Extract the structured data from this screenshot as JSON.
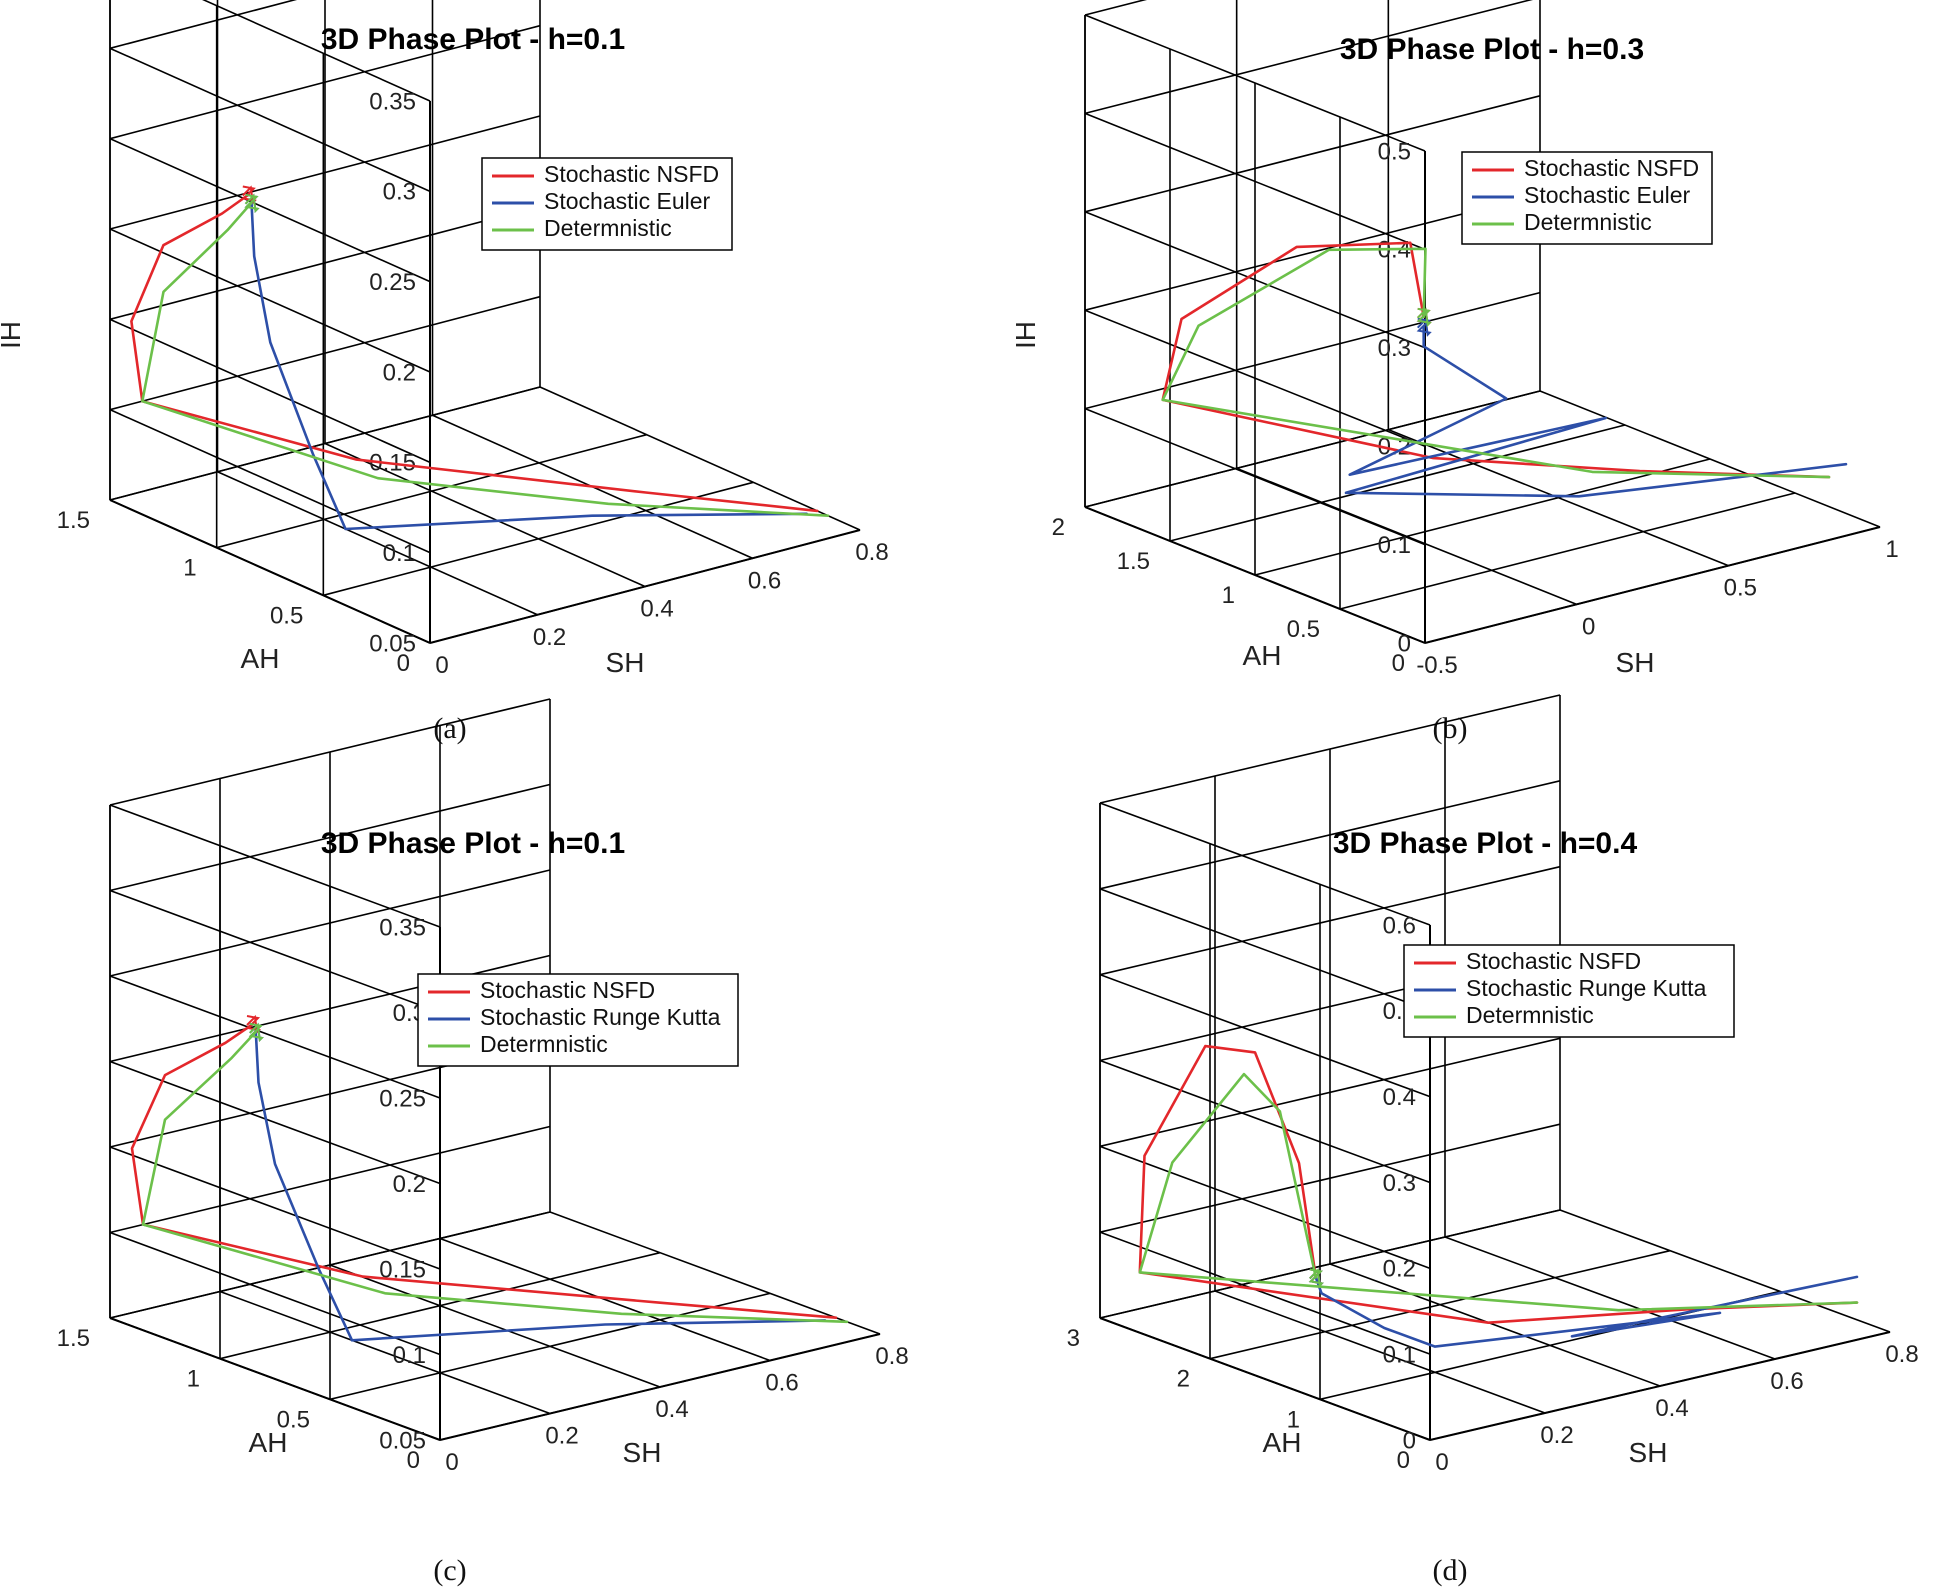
{
  "colors": {
    "nsfd": "#e3272b",
    "stochastic": "#2d4fa8",
    "deterministic": "#6cc04a",
    "axis": "#000000"
  },
  "chart_data": [
    {
      "type": "line3d",
      "panel_label": "(a)",
      "title": "3D Phase Plot - h=0.1",
      "xlabel": "SH",
      "ylabel": "AH",
      "zlabel": "IH",
      "xlim": [
        0,
        0.8
      ],
      "ylim": [
        0,
        1.5
      ],
      "zlim": [
        0.05,
        0.35
      ],
      "x_ticks": [
        "0",
        "0.2",
        "0.4",
        "0.6",
        "0.8"
      ],
      "y_ticks": [
        "0",
        "0.5",
        "1",
        "1.5"
      ],
      "z_ticks": [
        "0.05",
        "0.1",
        "0.15",
        "0.2",
        "0.25",
        "0.3",
        "0.35"
      ],
      "legend": [
        "Stochastic NSFD",
        "Stochastic Euler",
        "Determnistic"
      ],
      "series": [
        {
          "name": "Stochastic NSFD",
          "color_key": "nsfd",
          "points": [
            [
              0.8,
              0.2,
              0.05
            ],
            [
              0.6,
              0.5,
              0.06
            ],
            [
              0.3,
              1.1,
              0.07
            ],
            [
              0.06,
              1.5,
              0.1
            ],
            [
              0.02,
              1.45,
              0.15
            ],
            [
              0.02,
              1.3,
              0.2
            ],
            [
              0.03,
              1.05,
              0.23
            ],
            [
              0.04,
              0.95,
              0.245
            ]
          ]
        },
        {
          "name": "Stochastic Euler",
          "color_key": "stochastic",
          "points": [
            [
              0.78,
              0.2,
              0.05
            ],
            [
              0.5,
              0.5,
              0.055
            ],
            [
              0.2,
              0.9,
              0.05
            ],
            [
              0.12,
              0.85,
              0.1
            ],
            [
              0.08,
              0.95,
              0.16
            ],
            [
              0.05,
              0.95,
              0.21
            ],
            [
              0.045,
              0.95,
              0.24
            ]
          ]
        },
        {
          "name": "Determnistic",
          "color_key": "deterministic",
          "points": [
            [
              0.8,
              0.15,
              0.05
            ],
            [
              0.55,
              0.55,
              0.055
            ],
            [
              0.3,
              1.0,
              0.065
            ],
            [
              0.06,
              1.5,
              0.1
            ],
            [
              0.04,
              1.35,
              0.17
            ],
            [
              0.04,
              1.05,
              0.22
            ],
            [
              0.045,
              0.95,
              0.24
            ]
          ]
        }
      ]
    },
    {
      "type": "line3d",
      "panel_label": "(b)",
      "title": "3D Phase Plot - h=0.3",
      "xlabel": "SH",
      "ylabel": "AH",
      "zlabel": "IH",
      "xlim": [
        -0.5,
        1
      ],
      "ylim": [
        0,
        2
      ],
      "zlim": [
        0,
        0.5
      ],
      "x_ticks": [
        "-0.5",
        "0",
        "0.5",
        "1"
      ],
      "y_ticks": [
        "0",
        "0.5",
        "1",
        "1.5",
        "2"
      ],
      "z_ticks": [
        "0",
        "0.1",
        "0.2",
        "0.3",
        "0.4",
        "0.5"
      ],
      "legend": [
        "Stochastic NSFD",
        "Stochastic Euler",
        "Determnistic"
      ],
      "series": [
        {
          "name": "Stochastic NSFD",
          "color_key": "nsfd",
          "points": [
            [
              1,
              0.3,
              0.03
            ],
            [
              0.6,
              0.7,
              0.04
            ],
            [
              0.2,
              1.2,
              0.05
            ],
            [
              -0.3,
              1.9,
              0.1
            ],
            [
              -0.35,
              1.7,
              0.2
            ],
            [
              -0.25,
              1.2,
              0.3
            ],
            [
              -0.1,
              0.8,
              0.32
            ],
            [
              0,
              0.9,
              0.23
            ]
          ]
        },
        {
          "name": "Stochastic Euler",
          "color_key": "stochastic",
          "points": [
            [
              1,
              0.2,
              0.05
            ],
            [
              0.4,
              0.7,
              0.03
            ],
            [
              -0.2,
              1.0,
              0.06
            ],
            [
              0.6,
              0.9,
              0.08
            ],
            [
              -0.3,
              0.8,
              0.1
            ],
            [
              0.3,
              0.95,
              0.12
            ],
            [
              0,
              0.9,
              0.2
            ],
            [
              0,
              0.9,
              0.22
            ]
          ]
        },
        {
          "name": "Determnistic",
          "color_key": "deterministic",
          "points": [
            [
              1,
              0.3,
              0.03
            ],
            [
              0.5,
              0.8,
              0.04
            ],
            [
              -0.3,
              1.9,
              0.1
            ],
            [
              -0.35,
              1.6,
              0.2
            ],
            [
              -0.2,
              1.1,
              0.3
            ],
            [
              -0.05,
              0.8,
              0.31
            ],
            [
              0,
              0.9,
              0.23
            ]
          ]
        }
      ]
    },
    {
      "type": "line3d",
      "panel_label": "(c)",
      "title": "3D Phase Plot - h=0.1",
      "xlabel": "SH",
      "ylabel": "AH",
      "zlabel": "",
      "xlim": [
        0,
        0.8
      ],
      "ylim": [
        0,
        1.5
      ],
      "zlim": [
        0.05,
        0.35
      ],
      "x_ticks": [
        "0",
        "0.2",
        "0.4",
        "0.6",
        "0.8"
      ],
      "y_ticks": [
        "0",
        "0.5",
        "1",
        "1.5"
      ],
      "z_ticks": [
        "0.05",
        "0.1",
        "0.15",
        "0.2",
        "0.25",
        "0.3",
        "0.35"
      ],
      "legend": [
        "Stochastic NSFD",
        "Stochastic Runge Kutta",
        "Determnistic"
      ],
      "series": [
        {
          "name": "Stochastic NSFD",
          "color_key": "nsfd",
          "points": [
            [
              0.8,
              0.2,
              0.05
            ],
            [
              0.6,
              0.5,
              0.06
            ],
            [
              0.3,
              1.1,
              0.07
            ],
            [
              0.06,
              1.5,
              0.1
            ],
            [
              0.02,
              1.45,
              0.15
            ],
            [
              0.02,
              1.3,
              0.2
            ],
            [
              0.03,
              1.05,
              0.23
            ],
            [
              0.04,
              0.95,
              0.245
            ]
          ]
        },
        {
          "name": "Stochastic Runge Kutta",
          "color_key": "stochastic",
          "points": [
            [
              0.78,
              0.2,
              0.05
            ],
            [
              0.5,
              0.5,
              0.055
            ],
            [
              0.2,
              0.9,
              0.05
            ],
            [
              0.12,
              0.85,
              0.1
            ],
            [
              0.08,
              0.95,
              0.16
            ],
            [
              0.05,
              0.95,
              0.21
            ],
            [
              0.045,
              0.95,
              0.24
            ]
          ]
        },
        {
          "name": "Determnistic",
          "color_key": "deterministic",
          "points": [
            [
              0.8,
              0.15,
              0.05
            ],
            [
              0.55,
              0.55,
              0.055
            ],
            [
              0.3,
              1.0,
              0.065
            ],
            [
              0.06,
              1.5,
              0.1
            ],
            [
              0.04,
              1.35,
              0.17
            ],
            [
              0.04,
              1.05,
              0.22
            ],
            [
              0.045,
              0.95,
              0.24
            ]
          ]
        }
      ]
    },
    {
      "type": "line3d",
      "panel_label": "(d)",
      "title": "3D Phase Plot - h=0.4",
      "xlabel": "SH",
      "ylabel": "AH",
      "zlabel": "",
      "xlim": [
        0,
        0.8
      ],
      "ylim": [
        0,
        3
      ],
      "zlim": [
        0,
        0.6
      ],
      "x_ticks": [
        "0",
        "0.2",
        "0.4",
        "0.6",
        "0.8"
      ],
      "y_ticks": [
        "0",
        "1",
        "2",
        "3"
      ],
      "z_ticks": [
        "0",
        "0.1",
        "0.2",
        "0.3",
        "0.4",
        "0.5",
        "0.6"
      ],
      "legend": [
        "Stochastic NSFD",
        "Stochastic Runge Kutta",
        "Determnistic"
      ],
      "series": [
        {
          "name": "Stochastic NSFD",
          "color_key": "nsfd",
          "points": [
            [
              0.8,
              0.3,
              0.02
            ],
            [
              0.6,
              0.8,
              0.02
            ],
            [
              0.35,
              1.3,
              0.02
            ],
            [
              0.05,
              2.9,
              0.05
            ],
            [
              0.02,
              2.7,
              0.2
            ],
            [
              0.03,
              2.2,
              0.35
            ],
            [
              0.04,
              1.8,
              0.36
            ],
            [
              0.04,
              1.4,
              0.25
            ],
            [
              0.05,
              1.3,
              0.12
            ]
          ]
        },
        {
          "name": "Stochastic Runge Kutta",
          "color_key": "stochastic",
          "points": [
            [
              0.8,
              0.3,
              0.05
            ],
            [
              0.4,
              0.8,
              0.02
            ],
            [
              0.6,
              0.5,
              0.03
            ],
            [
              0.2,
              1.0,
              0.03
            ],
            [
              0.15,
              1.2,
              0.05
            ],
            [
              0.06,
              1.3,
              0.1
            ],
            [
              0.05,
              1.3,
              0.12
            ]
          ]
        },
        {
          "name": "Determnistic",
          "color_key": "deterministic",
          "points": [
            [
              0.8,
              0.3,
              0.02
            ],
            [
              0.5,
              0.9,
              0.03
            ],
            [
              0.05,
              2.9,
              0.05
            ],
            [
              0.03,
              2.5,
              0.2
            ],
            [
              0.04,
              1.9,
              0.33
            ],
            [
              0.045,
              1.6,
              0.3
            ],
            [
              0.05,
              1.3,
              0.12
            ]
          ]
        }
      ]
    }
  ]
}
